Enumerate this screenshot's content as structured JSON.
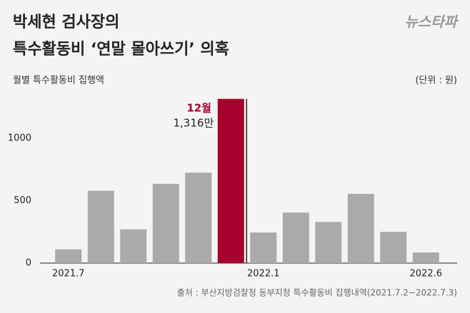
{
  "chart_data": {
    "type": "bar",
    "title": [
      "박세현 검사장의",
      "특수활동비 ‘연말 몰아쓰기’ 의혹"
    ],
    "logo": "뉴스타파",
    "subtitle": "월별 특수활동비 집행액",
    "unit": "(단위 : 원)",
    "source": "출처 : 부산지방검찰청 동부지청 특수활동비 집행내역(2021.7.2~2022.7.3)",
    "annotation": "12월",
    "categories": [
      "2021.7",
      null,
      null,
      null,
      null,
      null,
      "2022.1",
      null,
      null,
      null,
      null,
      "2022.6"
    ],
    "values": [
      110,
      580,
      270,
      635,
      725,
      1316,
      245,
      405,
      330,
      555,
      250,
      85
    ],
    "value_labels": [
      null,
      null,
      null,
      null,
      null,
      "1,316만",
      null,
      null,
      null,
      null,
      null,
      null
    ],
    "colors": [
      "#aaaaaa",
      "#aaaaaa",
      "#aaaaaa",
      "#aaaaaa",
      "#aaaaaa",
      "#a8002c",
      "#aaaaaa",
      "#aaaaaa",
      "#aaaaaa",
      "#aaaaaa",
      "#aaaaaa",
      "#aaaaaa"
    ],
    "ylim": [
      0,
      1400
    ],
    "yticks": [
      0,
      500,
      1000
    ],
    "grid": false
  }
}
